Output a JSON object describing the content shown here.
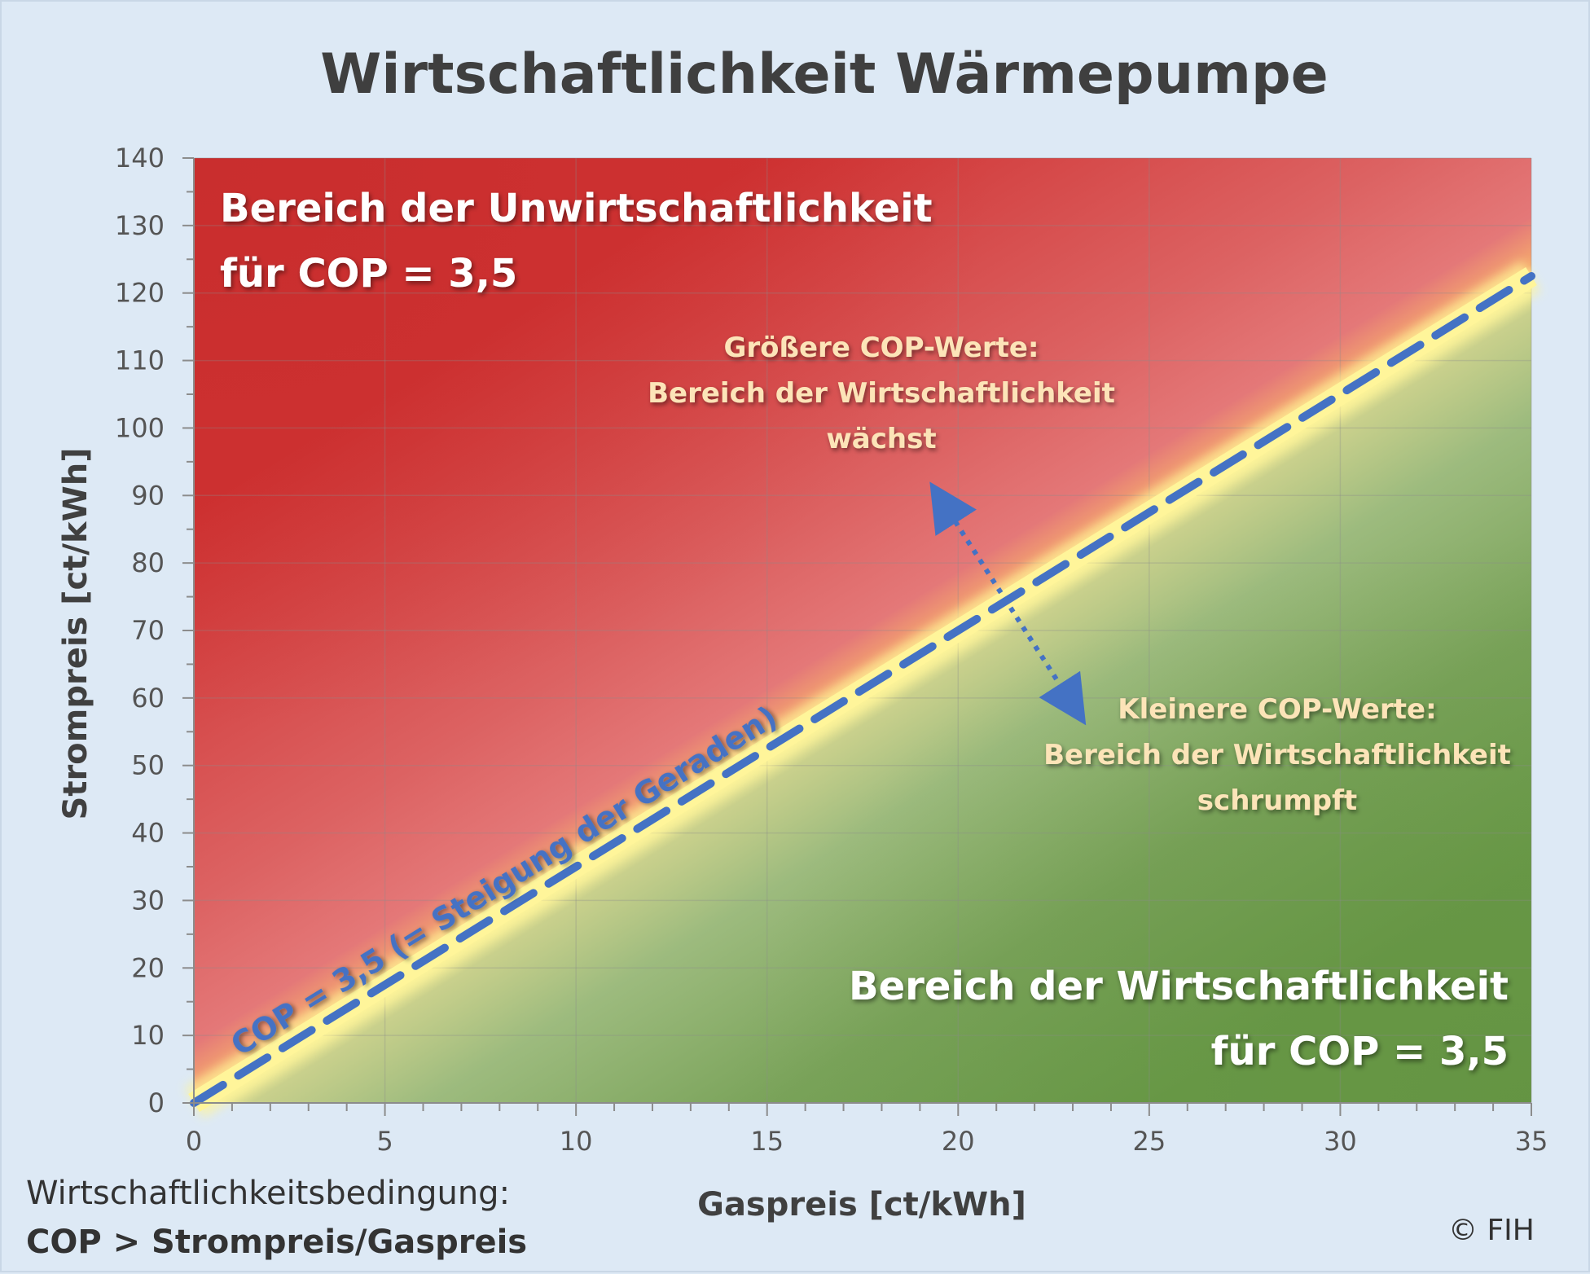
{
  "chart_data": {
    "type": "line",
    "title": "Wirtschaftlichkeit Wärmepumpe",
    "xlabel": "Gaspreis [ct/kWh]",
    "ylabel": "Strompreis [ct/kWh]",
    "xlim": [
      0,
      35
    ],
    "ylim": [
      0,
      140
    ],
    "x_ticks": [
      0,
      5,
      10,
      15,
      20,
      25,
      30,
      35
    ],
    "y_ticks": [
      0,
      10,
      20,
      30,
      40,
      50,
      60,
      70,
      80,
      90,
      100,
      110,
      120,
      130,
      140
    ],
    "grid": true,
    "series": [
      {
        "name": "COP = 3,5 (= Steigung der Geraden)",
        "x": [
          0,
          35
        ],
        "y": [
          0,
          122.5
        ],
        "style": "dashed",
        "color": "#4472c4"
      }
    ],
    "annotations": {
      "region_upper_line1": "Bereich der Unwirtschaftlichkeit",
      "region_upper_line2": "für COP = 3,5",
      "region_lower_line1": "Bereich der Wirtschaftlichkeit",
      "region_lower_line2": "für COP = 3,5",
      "cop_larger": [
        "Größere COP-Werte:",
        "Bereich der Wirtschaftlichkeit",
        "wächst"
      ],
      "cop_smaller": [
        "Kleinere COP-Werte:",
        "Bereich der Wirtschaftlichkeit",
        "schrumpft"
      ],
      "arrow_from": [
        19.6,
        89
      ],
      "arrow_to": [
        23.0,
        59
      ]
    },
    "colors": {
      "unprofitable": "#cf3232",
      "transition": "#f5a96e",
      "profitable": "#6a9a48",
      "line_highlight": "#fff59a",
      "line": "#4472c4",
      "annotation_text": "#fce4b8"
    }
  },
  "footer": {
    "condition_label": "Wirtschaftlichkeitsbedingung:",
    "condition_formula": "COP > Strompreis/Gaspreis",
    "copyright": "© FIH"
  }
}
